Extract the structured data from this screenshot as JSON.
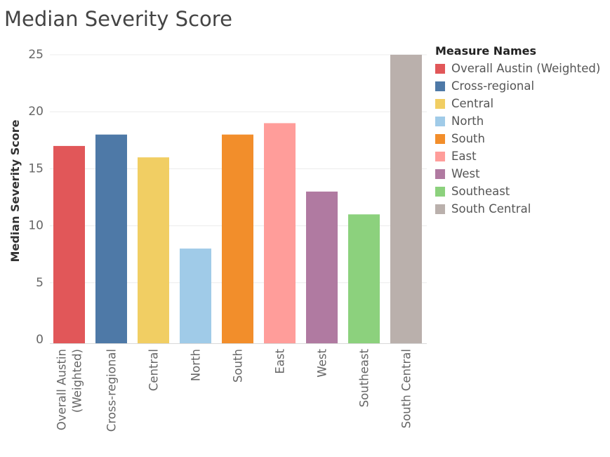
{
  "chart_data": {
    "type": "bar",
    "title": "Median Severity Score",
    "ylabel": "Median Severity Score",
    "xlabel": "",
    "ylim": [
      0,
      25
    ],
    "yticks": [
      0,
      5,
      10,
      15,
      20,
      25
    ],
    "grid": true,
    "legend_title": "Measure Names",
    "legend_position": "right",
    "categories": [
      "Overall Austin (Weighted)",
      "Cross-regional",
      "Central",
      "North",
      "South",
      "East",
      "West",
      "Southeast",
      "South Central"
    ],
    "category_tick_lines": [
      [
        "Overall Austin",
        "(Weighted)"
      ],
      [
        "Cross-regional"
      ],
      [
        "Central"
      ],
      [
        "North"
      ],
      [
        "South"
      ],
      [
        "East"
      ],
      [
        "West"
      ],
      [
        "Southeast"
      ],
      [
        "South Central"
      ]
    ],
    "values": [
      17,
      18,
      16,
      8,
      18,
      19,
      13,
      11,
      25
    ],
    "colors": [
      "#e15759",
      "#4e79a7",
      "#f1ce63",
      "#a0cbe8",
      "#f28e2b",
      "#ff9d9a",
      "#b07aa1",
      "#8cd17d",
      "#bab0ac"
    ]
  }
}
